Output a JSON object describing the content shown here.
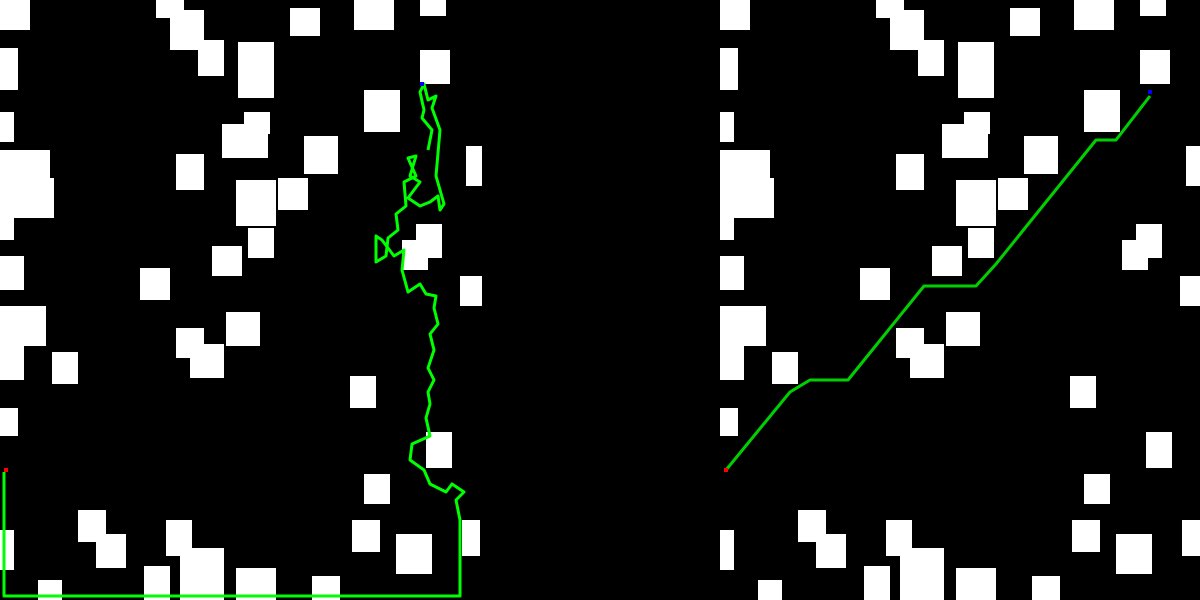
{
  "colors": {
    "background": "#000000",
    "obstacle": "#ffffff",
    "path": "#00ff00",
    "start_marker": "#ff0000",
    "goal_marker": "#0000ff"
  },
  "panels": [
    {
      "name": "left-panel-raw-path",
      "kind": "jagged-search-path"
    },
    {
      "name": "right-panel-smoothed-path",
      "kind": "smoothed-path"
    }
  ]
}
